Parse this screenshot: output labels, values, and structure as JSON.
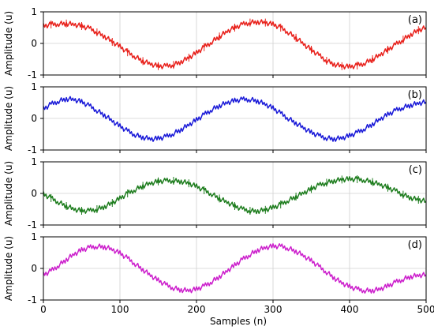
{
  "figure": {
    "xlabel": "Samples (n)"
  },
  "chart_data": [
    {
      "type": "line",
      "panel_label": "(a)",
      "ylabel": "Amplitude (u)",
      "xlim": [
        0,
        500
      ],
      "ylim": [
        -1,
        1
      ],
      "x_ticks": [
        "0",
        "100",
        "200",
        "300",
        "400",
        "500"
      ],
      "y_ticks": [
        "-1",
        "0",
        "1"
      ],
      "grid": true,
      "series_color": "#e8231a",
      "halo_color": "#ff66ff",
      "error_bars": true,
      "x": [
        0,
        10,
        20,
        30,
        40,
        50,
        60,
        70,
        80,
        90,
        100,
        110,
        120,
        130,
        140,
        150,
        160,
        170,
        180,
        190,
        200,
        210,
        220,
        230,
        240,
        250,
        260,
        270,
        280,
        290,
        300,
        310,
        320,
        330,
        340,
        350,
        360,
        370,
        380,
        390,
        400,
        410,
        420,
        430,
        440,
        450,
        460,
        470,
        480,
        490,
        500
      ],
      "y": [
        0.55,
        0.6,
        0.62,
        0.63,
        0.6,
        0.55,
        0.48,
        0.35,
        0.22,
        0.05,
        -0.1,
        -0.28,
        -0.42,
        -0.56,
        -0.65,
        -0.72,
        -0.72,
        -0.68,
        -0.58,
        -0.45,
        -0.3,
        -0.12,
        0.05,
        0.22,
        0.38,
        0.5,
        0.6,
        0.66,
        0.68,
        0.66,
        0.6,
        0.5,
        0.35,
        0.18,
        -0.02,
        -0.2,
        -0.38,
        -0.55,
        -0.66,
        -0.72,
        -0.74,
        -0.7,
        -0.62,
        -0.5,
        -0.36,
        -0.2,
        -0.04,
        0.12,
        0.28,
        0.42,
        0.5
      ]
    },
    {
      "type": "line",
      "panel_label": "(b)",
      "ylabel": "Amplitude (u)",
      "xlim": [
        0,
        500
      ],
      "ylim": [
        -1,
        1
      ],
      "x_ticks": [
        "0",
        "100",
        "200",
        "300",
        "400",
        "500"
      ],
      "y_ticks": [
        "-1",
        "0",
        "1"
      ],
      "grid": true,
      "series_color": "#1a1ad8",
      "halo_color": "",
      "error_bars": false,
      "x": [
        0,
        10,
        20,
        30,
        40,
        50,
        60,
        70,
        80,
        90,
        100,
        110,
        120,
        130,
        140,
        150,
        160,
        170,
        180,
        190,
        200,
        210,
        220,
        230,
        240,
        250,
        260,
        270,
        280,
        290,
        300,
        310,
        320,
        330,
        340,
        350,
        360,
        370,
        380,
        390,
        400,
        410,
        420,
        430,
        440,
        450,
        460,
        470,
        480,
        490,
        500
      ],
      "y": [
        0.3,
        0.45,
        0.55,
        0.62,
        0.6,
        0.52,
        0.4,
        0.25,
        0.1,
        -0.08,
        -0.25,
        -0.4,
        -0.52,
        -0.6,
        -0.65,
        -0.64,
        -0.58,
        -0.48,
        -0.35,
        -0.2,
        -0.05,
        0.12,
        0.28,
        0.4,
        0.5,
        0.56,
        0.6,
        0.6,
        0.55,
        0.45,
        0.32,
        0.16,
        0.0,
        -0.15,
        -0.3,
        -0.45,
        -0.55,
        -0.62,
        -0.65,
        -0.62,
        -0.55,
        -0.45,
        -0.32,
        -0.18,
        -0.02,
        0.12,
        0.25,
        0.35,
        0.42,
        0.48,
        0.52
      ]
    },
    {
      "type": "line",
      "panel_label": "(c)",
      "ylabel": "Amplitude (u)",
      "xlim": [
        0,
        500
      ],
      "ylim": [
        -1,
        1
      ],
      "x_ticks": [
        "0",
        "100",
        "200",
        "300",
        "400",
        "500"
      ],
      "y_ticks": [
        "-1",
        "0",
        "1"
      ],
      "grid": true,
      "series_color": "#1e7d1e",
      "halo_color": "",
      "error_bars": true,
      "x": [
        0,
        10,
        20,
        30,
        40,
        50,
        60,
        70,
        80,
        90,
        100,
        110,
        120,
        130,
        140,
        150,
        160,
        170,
        180,
        190,
        200,
        210,
        220,
        230,
        240,
        250,
        260,
        270,
        280,
        290,
        300,
        310,
        320,
        330,
        340,
        350,
        360,
        370,
        380,
        390,
        400,
        410,
        420,
        430,
        440,
        450,
        460,
        470,
        480,
        490,
        500
      ],
      "y": [
        -0.02,
        -0.15,
        -0.28,
        -0.4,
        -0.5,
        -0.55,
        -0.55,
        -0.5,
        -0.42,
        -0.3,
        -0.16,
        0.0,
        0.12,
        0.24,
        0.32,
        0.38,
        0.4,
        0.4,
        0.38,
        0.32,
        0.22,
        0.1,
        -0.02,
        -0.16,
        -0.28,
        -0.4,
        -0.5,
        -0.55,
        -0.56,
        -0.52,
        -0.45,
        -0.35,
        -0.22,
        -0.1,
        0.02,
        0.14,
        0.26,
        0.34,
        0.4,
        0.44,
        0.45,
        0.45,
        0.42,
        0.36,
        0.28,
        0.18,
        0.08,
        -0.04,
        -0.14,
        -0.2,
        -0.25
      ]
    },
    {
      "type": "line",
      "panel_label": "(d)",
      "ylabel": "Amplitude (u)",
      "xlim": [
        0,
        500
      ],
      "ylim": [
        -1,
        1
      ],
      "x_ticks": [
        "0",
        "100",
        "200",
        "300",
        "400",
        "500"
      ],
      "y_ticks": [
        "-1",
        "0",
        "1"
      ],
      "grid": true,
      "series_color": "#cc1fcc",
      "halo_color": "",
      "error_bars": false,
      "x": [
        0,
        10,
        20,
        30,
        40,
        50,
        60,
        70,
        80,
        90,
        100,
        110,
        120,
        130,
        140,
        150,
        160,
        170,
        180,
        190,
        200,
        210,
        220,
        230,
        240,
        250,
        260,
        270,
        280,
        290,
        300,
        310,
        320,
        330,
        340,
        350,
        360,
        370,
        380,
        390,
        400,
        410,
        420,
        430,
        440,
        450,
        460,
        470,
        480,
        490,
        500
      ],
      "y": [
        -0.2,
        -0.08,
        0.1,
        0.28,
        0.45,
        0.58,
        0.66,
        0.7,
        0.68,
        0.6,
        0.48,
        0.32,
        0.14,
        -0.04,
        -0.22,
        -0.38,
        -0.52,
        -0.62,
        -0.68,
        -0.7,
        -0.66,
        -0.56,
        -0.42,
        -0.26,
        -0.08,
        0.1,
        0.28,
        0.44,
        0.58,
        0.66,
        0.7,
        0.7,
        0.64,
        0.54,
        0.4,
        0.24,
        0.06,
        -0.12,
        -0.3,
        -0.46,
        -0.58,
        -0.66,
        -0.7,
        -0.7,
        -0.65,
        -0.56,
        -0.44,
        -0.34,
        -0.26,
        -0.22,
        -0.2
      ]
    }
  ]
}
